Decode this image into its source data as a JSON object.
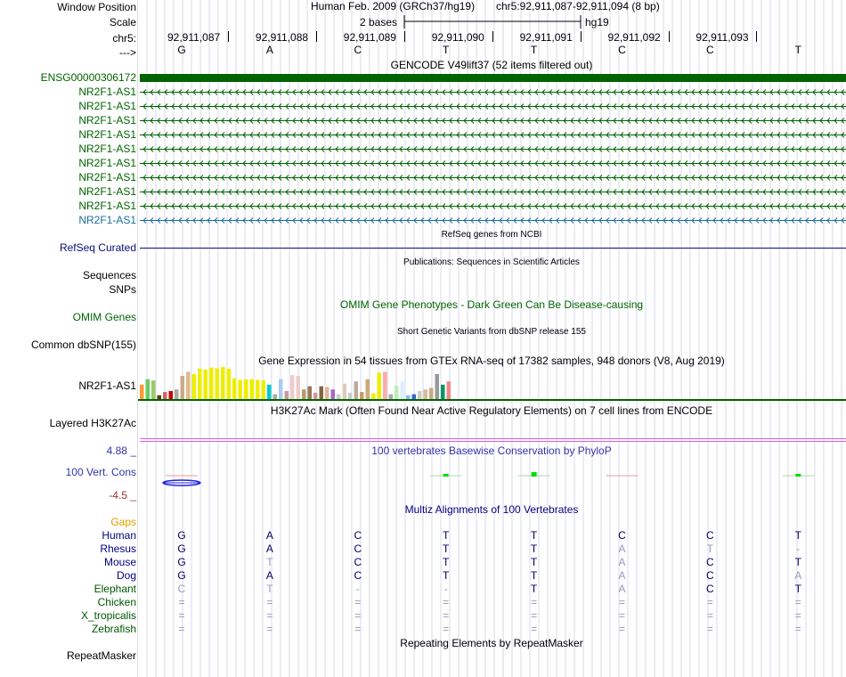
{
  "header": {
    "window_position_label": "Window Position",
    "scale_label": "Scale",
    "chrom_label": "chr5:",
    "strand_label": "--->",
    "assembly_text": "Human Feb. 2009 (GRCh37/hg19)",
    "position_text": "chr5:92,911,087-92,911,094 (8 bp)",
    "scale_text": "2 bases",
    "db_text": "hg19",
    "ruler_positions": [
      "92,911,087",
      "92,911,088",
      "92,911,089",
      "92,911,090",
      "92,911,091",
      "92,911,092",
      "92,911,093"
    ],
    "bases": [
      "G",
      "A",
      "C",
      "T",
      "T",
      "C",
      "C",
      "T"
    ]
  },
  "gencode": {
    "title": "GENCODE V49lift37 (52 items filtered out)",
    "main_label": "ENSG00000306172",
    "main_color": "#006400",
    "transcripts": [
      "NR2F1-AS1",
      "NR2F1-AS1",
      "NR2F1-AS1",
      "NR2F1-AS1",
      "NR2F1-AS1",
      "NR2F1-AS1",
      "NR2F1-AS1",
      "NR2F1-AS1",
      "NR2F1-AS1",
      "NR2F1-AS1"
    ]
  },
  "refseq": {
    "title": "RefSeq genes from NCBI",
    "label": "RefSeq Curated"
  },
  "publications": {
    "title": "Publications: Sequences in Scientific Articles",
    "label": "Sequences"
  },
  "snps_label": "SNPs",
  "omim": {
    "title": "OMIM Gene Phenotypes - Dark Green Can Be Disease-causing",
    "label": "OMIM Genes"
  },
  "dbsnp": {
    "title": "Short Genetic Variants from dbSNP release 155",
    "label": "Common dbSNP(155)"
  },
  "gtex": {
    "title": "Gene Expression in 54 tissues from GTEx RNA-seq of 17382 samples, 948 donors (V8, Aug 2019)",
    "label": "NR2F1-AS1",
    "bars": [
      {
        "v": 0.45,
        "c": "#ff9933"
      },
      {
        "v": 0.62,
        "c": "#66cc66"
      },
      {
        "v": 0.58,
        "c": "#99cc66"
      },
      {
        "v": 0.12,
        "c": "#663300"
      },
      {
        "v": 0.22,
        "c": "#cc6666"
      },
      {
        "v": 0.25,
        "c": "#cc0000"
      },
      {
        "v": 0.3,
        "c": "#aaaaaa"
      },
      {
        "v": 0.72,
        "c": "#ccaa88"
      },
      {
        "v": 0.85,
        "c": "#ddbb88"
      },
      {
        "v": 0.78,
        "c": "#eeee00"
      },
      {
        "v": 0.95,
        "c": "#eeee00"
      },
      {
        "v": 0.92,
        "c": "#eeee00"
      },
      {
        "v": 0.98,
        "c": "#eeee00"
      },
      {
        "v": 0.96,
        "c": "#eeee00"
      },
      {
        "v": 1.0,
        "c": "#eeee00"
      },
      {
        "v": 0.95,
        "c": "#eeee00"
      },
      {
        "v": 0.65,
        "c": "#eeee00"
      },
      {
        "v": 0.6,
        "c": "#eeee00"
      },
      {
        "v": 0.62,
        "c": "#eeee00"
      },
      {
        "v": 0.62,
        "c": "#eeee00"
      },
      {
        "v": 0.6,
        "c": "#eeee00"
      },
      {
        "v": 0.58,
        "c": "#eeee00"
      },
      {
        "v": 0.45,
        "c": "#00cccc"
      },
      {
        "v": 0.15,
        "c": "#aaaaaa"
      },
      {
        "v": 0.62,
        "c": "#aaccee"
      },
      {
        "v": 0.25,
        "c": "#cc9999"
      },
      {
        "v": 0.75,
        "c": "#eecccc"
      },
      {
        "v": 0.72,
        "c": "#eecccc"
      },
      {
        "v": 0.3,
        "c": "#bb9966"
      },
      {
        "v": 0.4,
        "c": "#997755"
      },
      {
        "v": 0.2,
        "c": "#cc9999"
      },
      {
        "v": 0.4,
        "c": "#886644"
      },
      {
        "v": 0.38,
        "c": "#ddbb99"
      },
      {
        "v": 0.3,
        "c": "#aa66cc"
      },
      {
        "v": 0.15,
        "c": "#cccccc"
      },
      {
        "v": 0.48,
        "c": "#ddccbb"
      },
      {
        "v": 0.2,
        "c": "#cccccc"
      },
      {
        "v": 0.55,
        "c": "#bbaa99"
      },
      {
        "v": 0.22,
        "c": "#cc9966"
      },
      {
        "v": 0.62,
        "c": "#ccaa77"
      },
      {
        "v": 0.18,
        "c": "#eeee00"
      },
      {
        "v": 0.82,
        "c": "#eeee00"
      },
      {
        "v": 0.85,
        "c": "#ffaaaa"
      },
      {
        "v": 0.15,
        "c": "#aaaaaa"
      },
      {
        "v": 0.42,
        "c": "#bbeebb"
      },
      {
        "v": 0.55,
        "c": "#ddeeff"
      },
      {
        "v": 0.12,
        "c": "#88bbee"
      },
      {
        "v": 0.15,
        "c": "#3366cc"
      },
      {
        "v": 0.25,
        "c": "#cccccc"
      },
      {
        "v": 0.3,
        "c": "#ddbb99"
      },
      {
        "v": 0.35,
        "c": "#ccaa88"
      },
      {
        "v": 0.78,
        "c": "#999999"
      },
      {
        "v": 0.45,
        "c": "#009966"
      },
      {
        "v": 0.55,
        "c": "#ee8888"
      }
    ]
  },
  "h3k27ac": {
    "title": "H3K27Ac Mark (Often Found Near Active Regulatory Elements) on 7 cell lines from ENCODE",
    "label": "Layered H3K27Ac"
  },
  "phylop": {
    "title": "100 vertebrates Basewise Conservation by PhyloP",
    "label": "100 Vert. Cons",
    "max_label": "4.88 _",
    "min_label": "-4.5 _",
    "scores": [
      -0.5,
      0,
      0,
      0.3,
      0.5,
      -0.05,
      0,
      0.08
    ]
  },
  "multiz": {
    "title": "Multiz Alignments of 100 Vertebrates",
    "gaps_label": "Gaps",
    "species": [
      {
        "name": "Human",
        "seq": [
          "G",
          "A",
          "C",
          "T",
          "T",
          "C",
          "C",
          "T"
        ]
      },
      {
        "name": "Rhesus",
        "seq": [
          "G",
          "A",
          "C",
          "T",
          "T",
          "A",
          "T",
          "-"
        ]
      },
      {
        "name": "Mouse",
        "seq": [
          "G",
          "T",
          "C",
          "T",
          "T",
          "A",
          "C",
          "T"
        ]
      },
      {
        "name": "Dog",
        "seq": [
          "G",
          "A",
          "C",
          "T",
          "T",
          "A",
          "C",
          "A"
        ]
      },
      {
        "name": "Elephant",
        "seq": [
          "C",
          "T",
          "-",
          "-",
          "T",
          "A",
          "C",
          "T"
        ]
      },
      {
        "name": "Chicken",
        "seq": [
          "=",
          "=",
          "=",
          "=",
          "=",
          "=",
          "=",
          "="
        ]
      },
      {
        "name": "X_tropicalis",
        "seq": [
          "=",
          "=",
          "=",
          "=",
          "=",
          "=",
          "=",
          "="
        ]
      },
      {
        "name": "Zebrafish",
        "seq": [
          "=",
          "=",
          "=",
          "=",
          "=",
          "=",
          "=",
          "="
        ]
      }
    ]
  },
  "repeatmasker": {
    "title": "Repeating Elements by RepeatMasker",
    "label": "RepeatMasker"
  },
  "colors": {
    "gencode_green": "#006400",
    "refseq_navy": "#0c0c78",
    "refseq_blue": "#1a6fa0",
    "omim_green": "#006400",
    "phylop_purple": "#3333aa",
    "h3k27ac_pink": "#e05ce0",
    "gaps_orange": "#e0a000",
    "species_navy": "#000080",
    "species_green": "#005500"
  }
}
